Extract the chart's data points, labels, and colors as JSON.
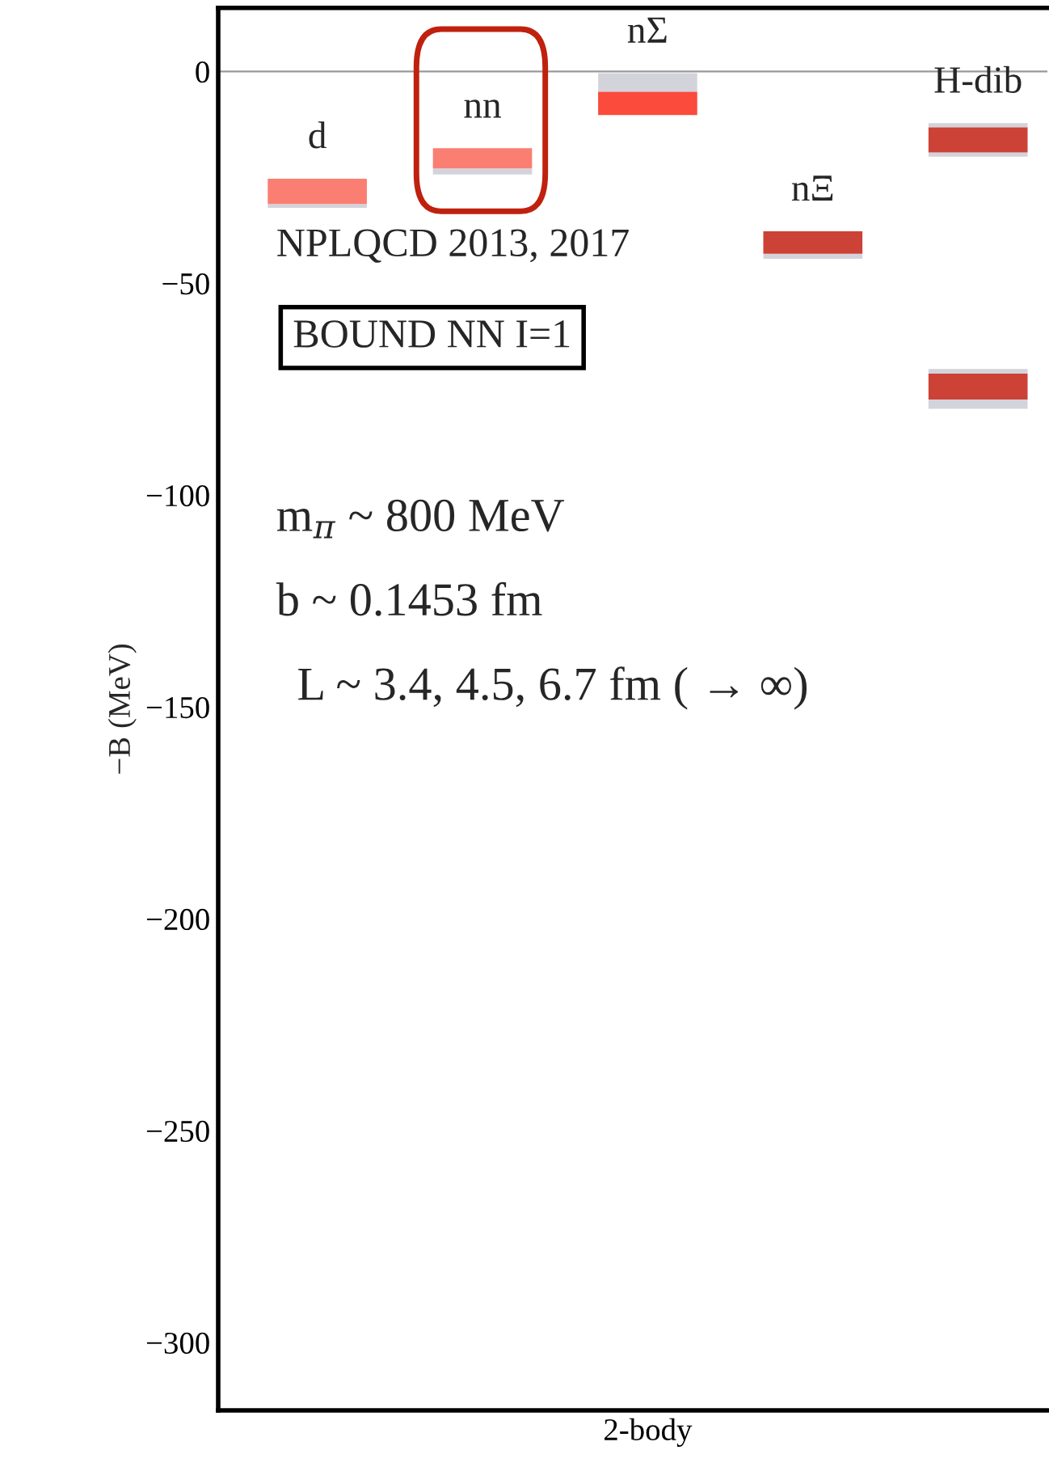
{
  "chart_data": {
    "type": "bar",
    "ylabel": "−B (MeV)",
    "xlabel": "2-body",
    "categories": [
      "d",
      "nn",
      "nΣ",
      "nΞ",
      "H-dib"
    ],
    "series": [
      {
        "color": "#d3d3dc",
        "base": [
          -32.2,
          -24.3,
          null,
          -44.2,
          -20.1
        ],
        "values": [
          0.9,
          1.4,
          null,
          1.2,
          1.0
        ]
      },
      {
        "color": "#d3d3dc",
        "base": [
          null,
          null,
          -4.8,
          null,
          -13.2
        ],
        "values": [
          null,
          null,
          4.4,
          null,
          1.0
        ]
      },
      {
        "colors": [
          "#fa7f72",
          "#fa7f72",
          "#fa4b3c",
          "#cc4236",
          "#cc4236"
        ],
        "base": [
          -31.3,
          -22.9,
          -10.3,
          -43.0,
          -19.1
        ],
        "values": [
          6.0,
          4.8,
          5.5,
          5.3,
          5.9
        ]
      },
      {
        "color": "#d3d3dc",
        "base": [
          null,
          null,
          null,
          null,
          -79.6
        ],
        "values": [
          null,
          null,
          null,
          null,
          2.2
        ]
      },
      {
        "color": "#d3d3dc",
        "base": [
          null,
          null,
          null,
          null,
          -71.3
        ],
        "values": [
          null,
          null,
          null,
          null,
          1.1
        ]
      },
      {
        "color": "#cc4236",
        "base": [
          null,
          null,
          null,
          null,
          -77.4
        ],
        "values": [
          null,
          null,
          null,
          null,
          6.1
        ]
      }
    ],
    "ylim": [
      -316,
      15
    ],
    "yticks": [
      {
        "value": 0,
        "label": "0"
      },
      {
        "value": -50,
        "label": "−50"
      },
      {
        "value": -100,
        "label": "−100"
      },
      {
        "value": -150,
        "label": "−150"
      },
      {
        "value": -200,
        "label": "−200"
      },
      {
        "value": -250,
        "label": "−250"
      },
      {
        "value": -300,
        "label": "−300"
      }
    ],
    "ref_lines": [
      {
        "axis": "y",
        "value": 0,
        "color": "#999999"
      }
    ],
    "annotations": [
      "NPLQCD 2013, 2017",
      "BOUND NN I=1",
      "m$_{π}$ ~ 800 MeV",
      "b ~ 0.1453 fm",
      "L ~ 3.4, 4.5, 6.7 fm ( → ∞)"
    ],
    "grid": false,
    "legend": false
  }
}
